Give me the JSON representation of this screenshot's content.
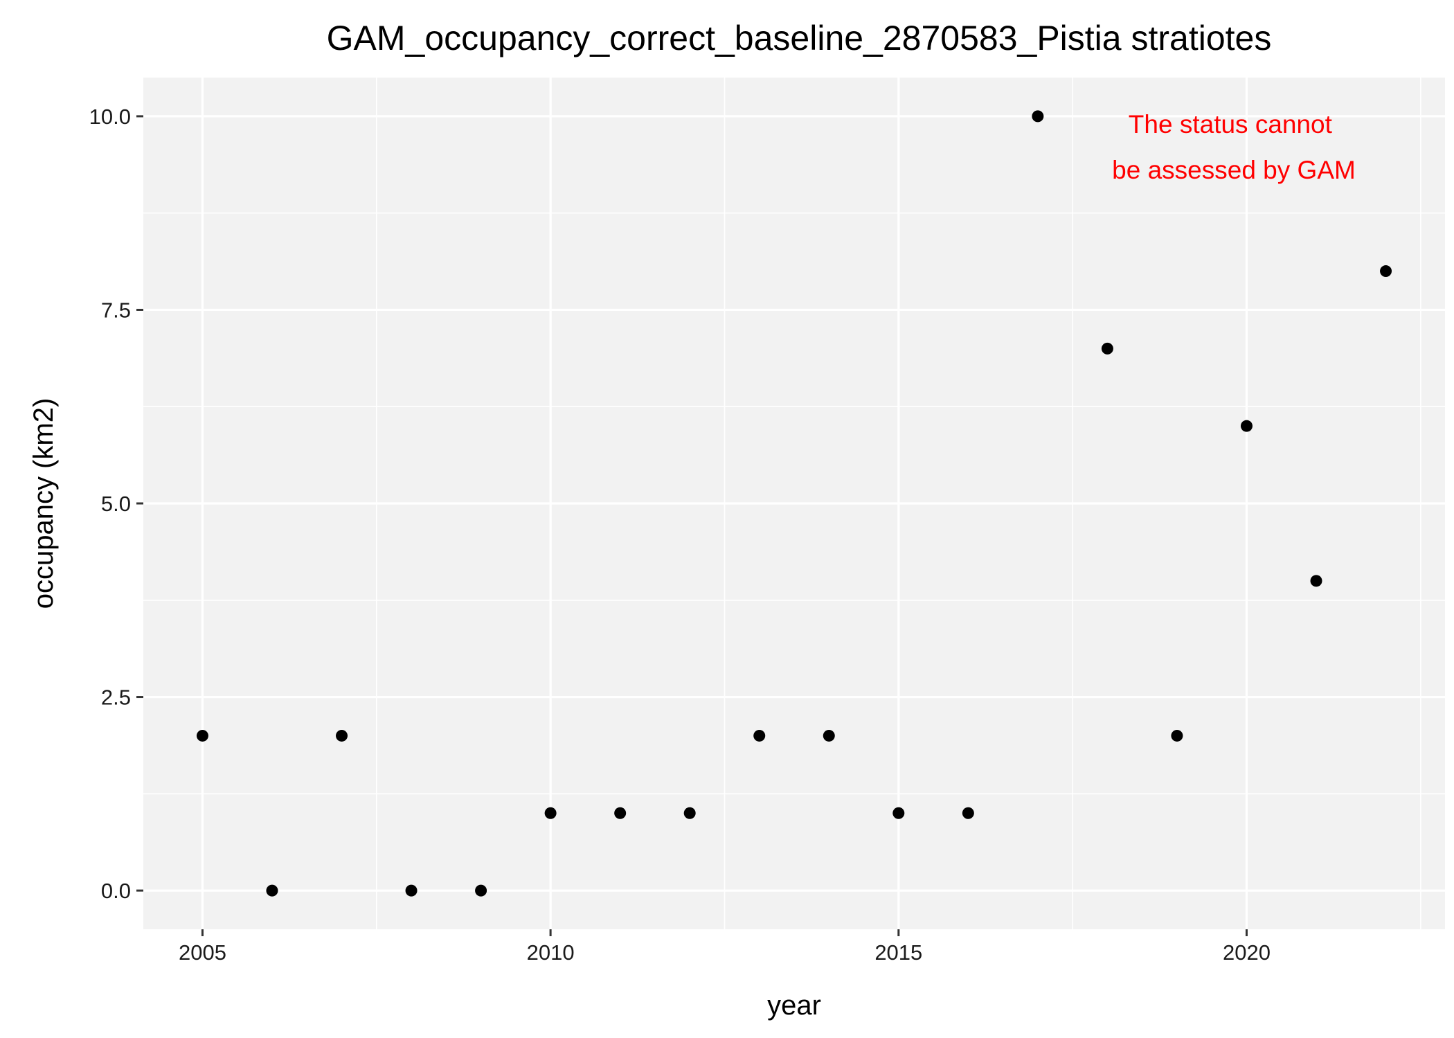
{
  "chart_data": {
    "type": "scatter",
    "title": "GAM_occupancy_correct_baseline_2870583_Pistia stratiotes",
    "xlabel": "year",
    "ylabel": "occupancy (km2)",
    "xlim": [
      2004.15,
      2022.85
    ],
    "ylim": [
      -0.5,
      10.5
    ],
    "x_ticks": [
      2005,
      2010,
      2015,
      2020
    ],
    "x_tick_labels": [
      "2005",
      "2010",
      "2015",
      "2020"
    ],
    "y_ticks": [
      0,
      2.5,
      5,
      7.5,
      10
    ],
    "y_tick_labels": [
      "0.0",
      "2.5",
      "5.0",
      "7.5",
      "10.0"
    ],
    "grid": true,
    "legend": "none",
    "panel_color": "#F2F2F2",
    "point_color": "#000000",
    "annotation": {
      "lines": [
        "The status cannot",
        "be assessed by GAM"
      ],
      "color": "#FF0000"
    },
    "points": [
      {
        "x": 2005,
        "y": 2
      },
      {
        "x": 2006,
        "y": 0
      },
      {
        "x": 2007,
        "y": 2
      },
      {
        "x": 2008,
        "y": 0
      },
      {
        "x": 2009,
        "y": 0
      },
      {
        "x": 2010,
        "y": 1
      },
      {
        "x": 2011,
        "y": 1
      },
      {
        "x": 2012,
        "y": 1
      },
      {
        "x": 2013,
        "y": 2
      },
      {
        "x": 2014,
        "y": 2
      },
      {
        "x": 2015,
        "y": 1
      },
      {
        "x": 2016,
        "y": 1
      },
      {
        "x": 2017,
        "y": 10
      },
      {
        "x": 2018,
        "y": 7
      },
      {
        "x": 2019,
        "y": 2
      },
      {
        "x": 2020,
        "y": 6
      },
      {
        "x": 2021,
        "y": 4
      },
      {
        "x": 2022,
        "y": 8
      }
    ]
  }
}
